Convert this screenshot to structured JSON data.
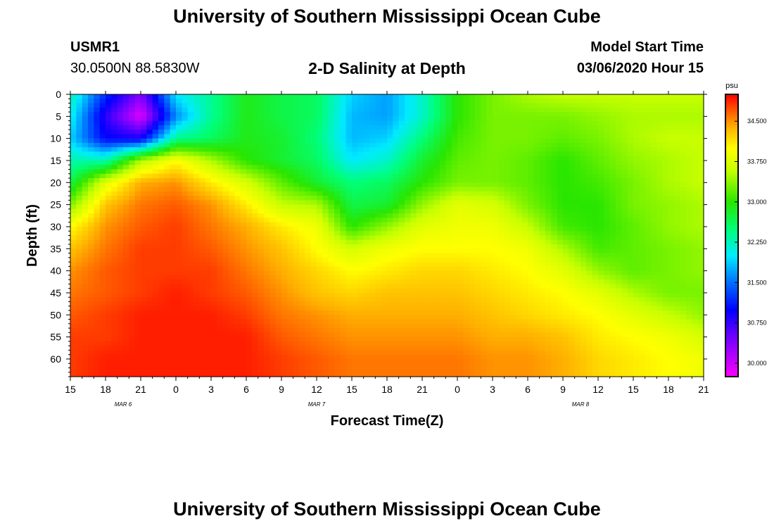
{
  "header": {
    "title": "University of Southern Mississippi Ocean Cube",
    "station_id": "USMR1",
    "station_coords": "30.0500N 88.5830W",
    "plot_title": "2-D Salinity at Depth",
    "model_start_label": "Model Start Time",
    "model_start_value": "03/06/2020 Hour 15"
  },
  "footer": {
    "title": "University of Southern Mississippi Ocean Cube"
  },
  "colors": {
    "low": "#ff00ff",
    "high": "#ff0000"
  },
  "chart_data": {
    "type": "heatmap",
    "title": "2-D Salinity at Depth",
    "xlabel": "Forecast Time(Z)",
    "ylabel": "Depth (ft)",
    "x_hours_range": [
      0,
      54
    ],
    "x_ticks": [
      {
        "h": 0,
        "label": "15"
      },
      {
        "h": 3,
        "label": "18"
      },
      {
        "h": 6,
        "label": "21"
      },
      {
        "h": 9,
        "label": "0"
      },
      {
        "h": 12,
        "label": "3"
      },
      {
        "h": 15,
        "label": "6"
      },
      {
        "h": 18,
        "label": "9"
      },
      {
        "h": 21,
        "label": "12"
      },
      {
        "h": 24,
        "label": "15"
      },
      {
        "h": 27,
        "label": "18"
      },
      {
        "h": 30,
        "label": "21"
      },
      {
        "h": 33,
        "label": "0"
      },
      {
        "h": 36,
        "label": "3"
      },
      {
        "h": 39,
        "label": "6"
      },
      {
        "h": 42,
        "label": "9"
      },
      {
        "h": 45,
        "label": "12"
      },
      {
        "h": 48,
        "label": "15"
      },
      {
        "h": 51,
        "label": "18"
      },
      {
        "h": 54,
        "label": "21"
      }
    ],
    "date_labels": [
      {
        "h": 4.5,
        "label": "MAR 6"
      },
      {
        "h": 21,
        "label": "MAR 7"
      },
      {
        "h": 43.5,
        "label": "MAR 8"
      }
    ],
    "y_range": [
      0,
      64
    ],
    "y_ticks": [
      0,
      5,
      10,
      15,
      20,
      25,
      30,
      35,
      40,
      45,
      50,
      55,
      60
    ],
    "colorbar": {
      "unit": "psu",
      "range": [
        29.75,
        35.0
      ],
      "tick_labels": [
        "30.000",
        "30.750",
        "31.500",
        "32.250",
        "33.000",
        "33.750",
        "34.500"
      ]
    },
    "hours": [
      0,
      3,
      6,
      9,
      12,
      15,
      18,
      21,
      24,
      27,
      30,
      33,
      36,
      39,
      42,
      45,
      48,
      51,
      54
    ],
    "depths": [
      0,
      5,
      10,
      15,
      20,
      25,
      30,
      35,
      40,
      45,
      50,
      55,
      60,
      64
    ],
    "values": [
      [
        32.3,
        31.2,
        30.4,
        32.0,
        32.4,
        32.9,
        32.7,
        32.6,
        31.9,
        31.7,
        32.2,
        33.0,
        33.3,
        33.5,
        33.6,
        33.6,
        33.6,
        33.6,
        33.6
      ],
      [
        32.1,
        30.8,
        29.9,
        31.6,
        32.4,
        32.9,
        32.7,
        32.6,
        31.8,
        31.7,
        32.2,
        33.0,
        33.3,
        33.3,
        33.3,
        33.4,
        33.5,
        33.5,
        33.5
      ],
      [
        31.9,
        31.0,
        30.9,
        32.4,
        32.6,
        32.9,
        32.8,
        32.5,
        31.8,
        31.9,
        32.5,
        33.1,
        33.3,
        33.3,
        33.2,
        33.3,
        33.5,
        33.6,
        33.6
      ],
      [
        32.3,
        32.3,
        33.5,
        34.0,
        33.5,
        33.0,
        32.8,
        32.6,
        32.0,
        32.2,
        32.8,
        33.2,
        33.3,
        33.2,
        33.0,
        33.2,
        33.4,
        33.5,
        33.6
      ],
      [
        32.7,
        33.8,
        34.4,
        34.5,
        34.1,
        33.7,
        33.2,
        32.8,
        32.5,
        32.6,
        33.0,
        33.3,
        33.3,
        33.2,
        33.0,
        33.1,
        33.3,
        33.5,
        33.6
      ],
      [
        33.3,
        34.3,
        34.6,
        34.7,
        34.5,
        34.1,
        33.6,
        33.5,
        32.7,
        32.8,
        33.4,
        33.8,
        33.7,
        33.3,
        33.0,
        33.0,
        33.3,
        33.4,
        33.5
      ],
      [
        34.0,
        34.5,
        34.7,
        34.8,
        34.6,
        34.4,
        34.1,
        33.9,
        33.0,
        33.4,
        33.8,
        33.9,
        33.9,
        33.6,
        33.1,
        33.0,
        33.2,
        33.4,
        33.5
      ],
      [
        34.3,
        34.6,
        34.8,
        34.8,
        34.7,
        34.5,
        34.3,
        34.0,
        33.7,
        33.9,
        34.0,
        34.0,
        34.0,
        33.9,
        33.5,
        33.1,
        33.2,
        33.3,
        33.4
      ],
      [
        34.5,
        34.7,
        34.8,
        34.8,
        34.8,
        34.6,
        34.4,
        34.2,
        34.0,
        34.1,
        34.2,
        34.2,
        34.1,
        34.0,
        33.8,
        33.4,
        33.2,
        33.3,
        33.4
      ],
      [
        34.6,
        34.7,
        34.8,
        34.9,
        34.8,
        34.7,
        34.5,
        34.3,
        34.2,
        34.3,
        34.3,
        34.3,
        34.2,
        34.1,
        34.0,
        33.8,
        33.5,
        33.3,
        33.3
      ],
      [
        34.7,
        34.8,
        34.9,
        34.9,
        34.9,
        34.8,
        34.6,
        34.5,
        34.4,
        34.4,
        34.4,
        34.4,
        34.3,
        34.2,
        34.1,
        34.0,
        33.8,
        33.6,
        33.4
      ],
      [
        34.8,
        34.8,
        34.9,
        34.9,
        34.9,
        34.9,
        34.7,
        34.6,
        34.5,
        34.5,
        34.5,
        34.5,
        34.4,
        34.4,
        34.3,
        34.1,
        34.0,
        33.9,
        33.7
      ],
      [
        34.8,
        34.9,
        34.9,
        34.9,
        34.9,
        34.9,
        34.8,
        34.7,
        34.6,
        34.6,
        34.6,
        34.6,
        34.5,
        34.5,
        34.4,
        34.2,
        34.1,
        34.0,
        33.9
      ],
      [
        34.8,
        34.9,
        34.9,
        34.9,
        34.9,
        34.9,
        34.8,
        34.7,
        34.6,
        34.6,
        34.6,
        34.6,
        34.5,
        34.5,
        34.4,
        34.2,
        34.1,
        34.0,
        33.9
      ]
    ]
  }
}
